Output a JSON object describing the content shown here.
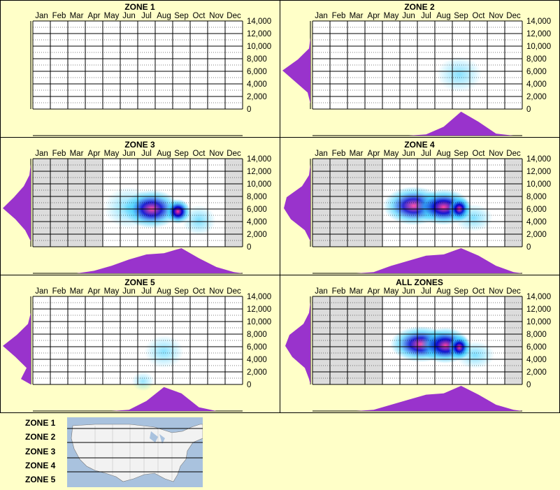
{
  "months": [
    "Jan",
    "Feb",
    "Mar",
    "Apr",
    "May",
    "Jun",
    "Jul",
    "Aug",
    "Sep",
    "Oct",
    "Nov",
    "Dec"
  ],
  "yticks": [
    "14,000",
    "12,000",
    "10,000",
    "8,000",
    "6,000",
    "4,000",
    "2,000",
    "0"
  ],
  "legend": {
    "zones": [
      "ZONE 1",
      "ZONE 2",
      "ZONE 3",
      "ZONE 4",
      "ZONE 5"
    ]
  },
  "colors": {
    "background": "#ffffc8",
    "density_fill": "#9933cc",
    "grid": "#000000",
    "heat_low": "#33ccff",
    "heat_mid": "#0000cc",
    "heat_high": "#ff3399"
  },
  "chart_data": [
    {
      "type": "heatmap",
      "title": "ZONE 1",
      "ylim": [
        0,
        14000
      ],
      "shaded_months": [],
      "hotspots": [],
      "month_density": [],
      "elev_density": []
    },
    {
      "type": "heatmap",
      "title": "ZONE 2",
      "ylim": [
        0,
        14000
      ],
      "shaded_months": [],
      "hotspots": [
        {
          "month": 8.4,
          "elev": 5500,
          "intensity": 0.35,
          "sx": 0.8,
          "sy": 1300
        }
      ],
      "month_density": [
        0,
        0,
        0,
        0,
        0,
        0,
        0.05,
        0.35,
        0.95,
        0.55,
        0.08,
        0
      ],
      "elev_density": [
        0,
        0.1,
        0.55,
        1.0,
        0.45,
        0.05,
        0,
        0
      ]
    },
    {
      "type": "heatmap",
      "title": "ZONE 3",
      "ylim": [
        0,
        14000
      ],
      "shaded_months": [
        0,
        1,
        2,
        3,
        11
      ],
      "hotspots": [
        {
          "month": 5.5,
          "elev": 6200,
          "intensity": 0.5,
          "sx": 0.9,
          "sy": 1500
        },
        {
          "month": 6.8,
          "elev": 6000,
          "intensity": 0.75,
          "sx": 1.0,
          "sy": 1400
        },
        {
          "month": 8.3,
          "elev": 5600,
          "intensity": 1.0,
          "sx": 0.45,
          "sy": 900
        },
        {
          "month": 9.5,
          "elev": 4200,
          "intensity": 0.5,
          "sx": 0.6,
          "sy": 1100
        }
      ],
      "month_density": [
        0,
        0,
        0,
        0.1,
        0.3,
        0.55,
        0.75,
        0.8,
        1.0,
        0.6,
        0.25,
        0.05
      ],
      "elev_density": [
        0,
        0.2,
        0.55,
        1.0,
        0.6,
        0.25,
        0.05,
        0
      ]
    },
    {
      "type": "heatmap",
      "title": "ZONE 4",
      "ylim": [
        0,
        14000
      ],
      "shaded_months": [
        0,
        1,
        2,
        3,
        11
      ],
      "hotspots": [
        {
          "month": 5.8,
          "elev": 6500,
          "intensity": 0.7,
          "sx": 1.1,
          "sy": 1400
        },
        {
          "month": 7.5,
          "elev": 6300,
          "intensity": 0.85,
          "sx": 1.0,
          "sy": 1300
        },
        {
          "month": 8.4,
          "elev": 6000,
          "intensity": 1.0,
          "sx": 0.4,
          "sy": 900
        },
        {
          "month": 9.2,
          "elev": 4600,
          "intensity": 0.45,
          "sx": 0.7,
          "sy": 1000
        }
      ],
      "month_density": [
        0,
        0,
        0,
        0.05,
        0.3,
        0.5,
        0.7,
        0.75,
        1.0,
        0.7,
        0.3,
        0.05
      ],
      "elev_density": [
        0,
        0.2,
        0.7,
        0.95,
        0.85,
        0.3,
        0.05,
        0
      ]
    },
    {
      "type": "heatmap",
      "title": "ZONE 5",
      "ylim": [
        0,
        14000
      ],
      "shaded_months": [],
      "hotspots": [
        {
          "month": 7.5,
          "elev": 5200,
          "intensity": 0.35,
          "sx": 0.7,
          "sy": 1200
        },
        {
          "month": 6.3,
          "elev": 500,
          "intensity": 0.2,
          "sx": 0.4,
          "sy": 700
        }
      ],
      "month_density": [
        0,
        0,
        0,
        0,
        0,
        0.05,
        0.4,
        0.95,
        0.7,
        0.15,
        0,
        0
      ],
      "elev_density": [
        0.35,
        0.15,
        0.55,
        1.0,
        0.5,
        0.1,
        0,
        0
      ]
    },
    {
      "type": "heatmap",
      "title": "ALL ZONES",
      "ylim": [
        0,
        14000
      ],
      "shaded_months": [
        0,
        1,
        2,
        3,
        11
      ],
      "hotspots": [
        {
          "month": 6.2,
          "elev": 6400,
          "intensity": 0.75,
          "sx": 1.1,
          "sy": 1300
        },
        {
          "month": 7.6,
          "elev": 6200,
          "intensity": 0.85,
          "sx": 0.9,
          "sy": 1300
        },
        {
          "month": 8.4,
          "elev": 5900,
          "intensity": 1.0,
          "sx": 0.4,
          "sy": 900
        },
        {
          "month": 9.3,
          "elev": 4700,
          "intensity": 0.45,
          "sx": 0.7,
          "sy": 1000
        }
      ],
      "month_density": [
        0,
        0,
        0,
        0.05,
        0.25,
        0.45,
        0.65,
        0.7,
        1.0,
        0.65,
        0.25,
        0.05
      ],
      "elev_density": [
        0.05,
        0.2,
        0.65,
        0.9,
        0.75,
        0.25,
        0.05,
        0
      ]
    }
  ]
}
